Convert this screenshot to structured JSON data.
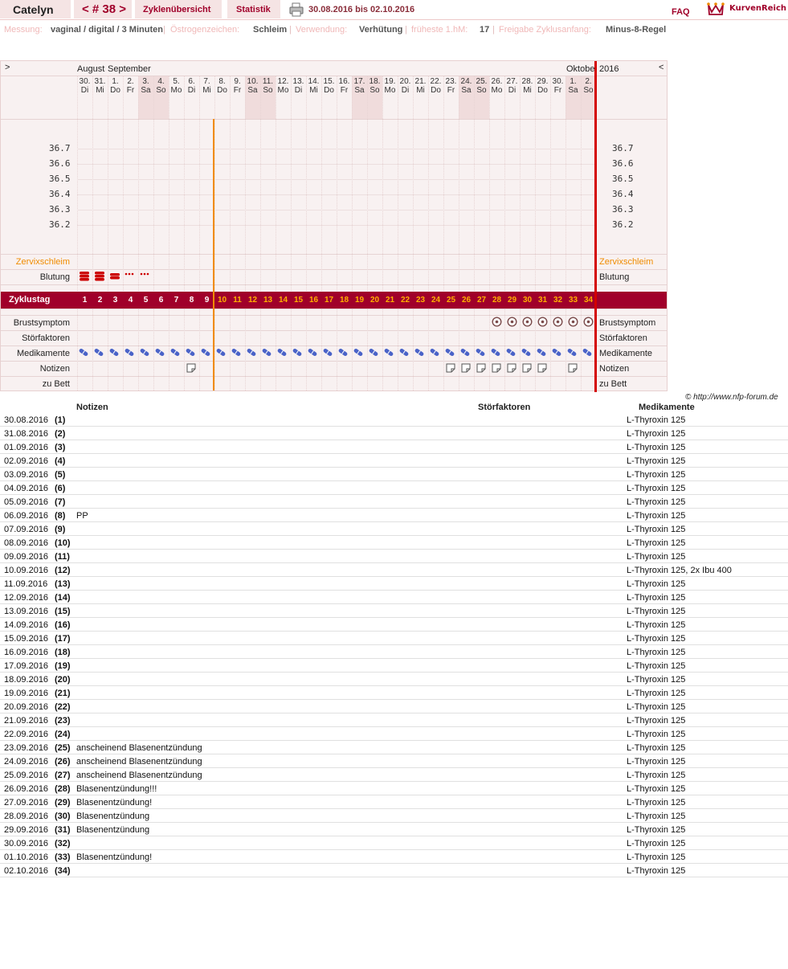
{
  "topbar": {
    "name": "Catelyn",
    "cycle": "< # 38 >",
    "overview": "Zyklenübersicht",
    "stats": "Statistik",
    "date_range": "30.08.2016 bis 02.10.2016",
    "faq": "FAQ",
    "logo": "KurvenReich"
  },
  "info": {
    "messung_label": "Messung:",
    "messung": "vaginal / digital / 3 Minuten",
    "oestrogen_label": "Östrogenzeichen:",
    "oestrogen": "Schleim",
    "verwendung_label": "Verwendung:",
    "verwendung": "Verhütung",
    "fruehste_label": "früheste 1.hM:",
    "fruehste": "17",
    "freigabe_label": "Freigabe Zyklusanfang:",
    "freigabe": "Minus-8-Regel",
    "sep": "|"
  },
  "chart": {
    "nav_left": ">",
    "nav_right": "<",
    "months": [
      "August",
      "September",
      "Oktobe"
    ],
    "year": "2016",
    "days": [
      {
        "d": "30.",
        "w": "Di"
      },
      {
        "d": "31.",
        "w": "Mi"
      },
      {
        "d": "1.",
        "w": "Do"
      },
      {
        "d": "2.",
        "w": "Fr"
      },
      {
        "d": "3.",
        "w": "Sa"
      },
      {
        "d": "4.",
        "w": "So"
      },
      {
        "d": "5.",
        "w": "Mo"
      },
      {
        "d": "6.",
        "w": "Di"
      },
      {
        "d": "7.",
        "w": "Mi"
      },
      {
        "d": "8.",
        "w": "Do"
      },
      {
        "d": "9.",
        "w": "Fr"
      },
      {
        "d": "10.",
        "w": "Sa"
      },
      {
        "d": "11.",
        "w": "So"
      },
      {
        "d": "12.",
        "w": "Mo"
      },
      {
        "d": "13.",
        "w": "Di"
      },
      {
        "d": "14.",
        "w": "Mi"
      },
      {
        "d": "15.",
        "w": "Do"
      },
      {
        "d": "16.",
        "w": "Fr"
      },
      {
        "d": "17.",
        "w": "Sa"
      },
      {
        "d": "18.",
        "w": "So"
      },
      {
        "d": "19.",
        "w": "Mo"
      },
      {
        "d": "20.",
        "w": "Di"
      },
      {
        "d": "21.",
        "w": "Mi"
      },
      {
        "d": "22.",
        "w": "Do"
      },
      {
        "d": "23.",
        "w": "Fr"
      },
      {
        "d": "24.",
        "w": "Sa"
      },
      {
        "d": "25.",
        "w": "So"
      },
      {
        "d": "26.",
        "w": "Mo"
      },
      {
        "d": "27.",
        "w": "Di"
      },
      {
        "d": "28.",
        "w": "Mi"
      },
      {
        "d": "29.",
        "w": "Do"
      },
      {
        "d": "30.",
        "w": "Fr"
      },
      {
        "d": "1.",
        "w": "Sa"
      },
      {
        "d": "2.",
        "w": "So"
      }
    ],
    "temps": [
      "36.7",
      "36.6",
      "36.5",
      "36.4",
      "36.3",
      "36.2"
    ],
    "row_labels": {
      "zervix": "Zervixschleim",
      "blutung": "Blutung",
      "zyklustag": "Zyklustag",
      "brust": "Brustsymptom",
      "stoer": "Störfaktoren",
      "medi": "Medikamente",
      "notizen": "Notizen",
      "bett": "zu Bett"
    },
    "cycle_days": [
      "1",
      "2",
      "3",
      "4",
      "5",
      "6",
      "7",
      "8",
      "9",
      "10",
      "11",
      "12",
      "13",
      "14",
      "15",
      "16",
      "17",
      "18",
      "19",
      "20",
      "21",
      "22",
      "23",
      "24",
      "25",
      "26",
      "27",
      "28",
      "29",
      "30",
      "31",
      "32",
      "33",
      "34"
    ],
    "bleeding": [
      "heavy",
      "heavy",
      "medium",
      "spotting",
      "spotting"
    ],
    "breast_symptom_days": [
      28,
      29,
      30,
      31,
      32,
      33,
      34
    ],
    "note_days": [
      8,
      25,
      26,
      27,
      28,
      29,
      30,
      31,
      33
    ],
    "colors": {
      "accent": "#a0002a",
      "orange": "#f08c00",
      "red_line": "#d40000",
      "pill": "#4a63c8"
    }
  },
  "copyright": "© http://www.nfp-forum.de",
  "notes": {
    "headers": {
      "notizen": "Notizen",
      "stoer": "Störfaktoren",
      "medi": "Medikamente"
    },
    "rows": [
      {
        "date": "30.08.2016",
        "day": "(1)",
        "note": "",
        "med": "L-Thyroxin 125"
      },
      {
        "date": "31.08.2016",
        "day": "(2)",
        "note": "",
        "med": "L-Thyroxin 125"
      },
      {
        "date": "01.09.2016",
        "day": "(3)",
        "note": "",
        "med": "L-Thyroxin 125"
      },
      {
        "date": "02.09.2016",
        "day": "(4)",
        "note": "",
        "med": "L-Thyroxin 125"
      },
      {
        "date": "03.09.2016",
        "day": "(5)",
        "note": "",
        "med": "L-Thyroxin 125"
      },
      {
        "date": "04.09.2016",
        "day": "(6)",
        "note": "",
        "med": "L-Thyroxin 125"
      },
      {
        "date": "05.09.2016",
        "day": "(7)",
        "note": "",
        "med": "L-Thyroxin 125"
      },
      {
        "date": "06.09.2016",
        "day": "(8)",
        "note": "PP",
        "med": "L-Thyroxin 125"
      },
      {
        "date": "07.09.2016",
        "day": "(9)",
        "note": "",
        "med": "L-Thyroxin 125"
      },
      {
        "date": "08.09.2016",
        "day": "(10)",
        "note": "",
        "med": "L-Thyroxin 125"
      },
      {
        "date": "09.09.2016",
        "day": "(11)",
        "note": "",
        "med": "L-Thyroxin 125"
      },
      {
        "date": "10.09.2016",
        "day": "(12)",
        "note": "",
        "med": "L-Thyroxin 125, 2x Ibu 400"
      },
      {
        "date": "11.09.2016",
        "day": "(13)",
        "note": "",
        "med": "L-Thyroxin 125"
      },
      {
        "date": "12.09.2016",
        "day": "(14)",
        "note": "",
        "med": "L-Thyroxin 125"
      },
      {
        "date": "13.09.2016",
        "day": "(15)",
        "note": "",
        "med": "L-Thyroxin 125"
      },
      {
        "date": "14.09.2016",
        "day": "(16)",
        "note": "",
        "med": "L-Thyroxin 125"
      },
      {
        "date": "15.09.2016",
        "day": "(17)",
        "note": "",
        "med": "L-Thyroxin 125"
      },
      {
        "date": "16.09.2016",
        "day": "(18)",
        "note": "",
        "med": "L-Thyroxin 125"
      },
      {
        "date": "17.09.2016",
        "day": "(19)",
        "note": "",
        "med": "L-Thyroxin 125"
      },
      {
        "date": "18.09.2016",
        "day": "(20)",
        "note": "",
        "med": "L-Thyroxin 125"
      },
      {
        "date": "19.09.2016",
        "day": "(21)",
        "note": "",
        "med": "L-Thyroxin 125"
      },
      {
        "date": "20.09.2016",
        "day": "(22)",
        "note": "",
        "med": "L-Thyroxin 125"
      },
      {
        "date": "21.09.2016",
        "day": "(23)",
        "note": "",
        "med": "L-Thyroxin 125"
      },
      {
        "date": "22.09.2016",
        "day": "(24)",
        "note": "",
        "med": "L-Thyroxin 125"
      },
      {
        "date": "23.09.2016",
        "day": "(25)",
        "note": "anscheinend Blasenentzündung",
        "med": "L-Thyroxin 125"
      },
      {
        "date": "24.09.2016",
        "day": "(26)",
        "note": "anscheinend Blasenentzündung",
        "med": "L-Thyroxin 125"
      },
      {
        "date": "25.09.2016",
        "day": "(27)",
        "note": "anscheinend Blasenentzündung",
        "med": "L-Thyroxin 125"
      },
      {
        "date": "26.09.2016",
        "day": "(28)",
        "note": "Blasenentzündung!!!",
        "med": "L-Thyroxin 125"
      },
      {
        "date": "27.09.2016",
        "day": "(29)",
        "note": "Blasenentzündung!",
        "med": "L-Thyroxin 125"
      },
      {
        "date": "28.09.2016",
        "day": "(30)",
        "note": "Blasenentzündung",
        "med": "L-Thyroxin 125"
      },
      {
        "date": "29.09.2016",
        "day": "(31)",
        "note": "Blasenentzündung",
        "med": "L-Thyroxin 125"
      },
      {
        "date": "30.09.2016",
        "day": "(32)",
        "note": "",
        "med": "L-Thyroxin 125"
      },
      {
        "date": "01.10.2016",
        "day": "(33)",
        "note": "Blasenentzündung!",
        "med": "L-Thyroxin 125"
      },
      {
        "date": "02.10.2016",
        "day": "(34)",
        "note": "",
        "med": "L-Thyroxin 125"
      }
    ]
  }
}
